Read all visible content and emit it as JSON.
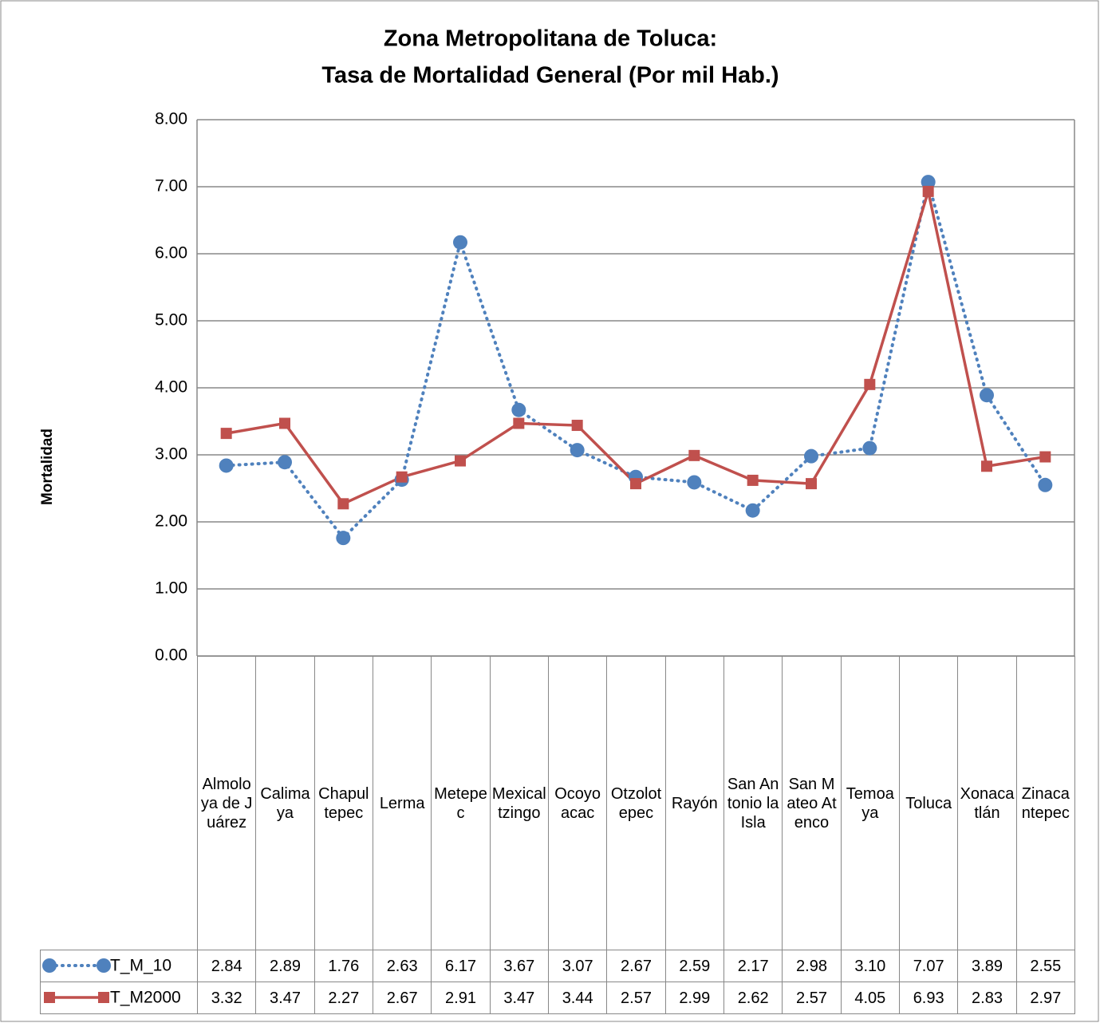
{
  "chart_data": {
    "type": "line",
    "title": "Zona Metropolitana de Toluca:",
    "subtitle": "Tasa de Mortalidad General (Por mil Hab.)",
    "y_label": "Mortalidad",
    "categories": [
      "Almoloya de Juárez",
      "Calimaya",
      "Chapultepec",
      "Lerma",
      "Metepec",
      "Mexicaltzingo",
      "Ocoyoacac",
      "Otzolotepec",
      "Rayón",
      "San Antonio la Isla",
      "San Mateo Atenco",
      "Temoaya",
      "Toluca",
      "Xonacatlán",
      "Zinacantepec"
    ],
    "series": [
      {
        "name": "T_M_10",
        "color": "#4f81bd",
        "marker": "circle",
        "dash": "dotted",
        "values": [
          2.84,
          2.89,
          1.76,
          2.63,
          6.17,
          3.67,
          3.07,
          2.67,
          2.59,
          2.17,
          2.98,
          3.1,
          7.07,
          3.89,
          2.55
        ],
        "value_labels": [
          "2.84",
          "2.89",
          "1.76",
          "2.63",
          "6.17",
          "3.67",
          "3.07",
          "2.67",
          "2.59",
          "2.17",
          "2.98",
          "3.10",
          "7.07",
          "3.89",
          "2.55"
        ]
      },
      {
        "name": "T_M2000",
        "color": "#c0504d",
        "marker": "square",
        "dash": "solid",
        "values": [
          3.32,
          3.47,
          2.27,
          2.67,
          2.91,
          3.47,
          3.44,
          2.57,
          2.99,
          2.62,
          2.57,
          4.05,
          6.93,
          2.83,
          2.97
        ],
        "value_labels": [
          "3.32",
          "3.47",
          "2.27",
          "2.67",
          "2.91",
          "3.47",
          "3.44",
          "2.57",
          "2.99",
          "2.62",
          "2.57",
          "4.05",
          "6.93",
          "2.83",
          "2.97"
        ]
      }
    ],
    "ylim": [
      0,
      8
    ],
    "yticks": [
      {
        "value": 0,
        "label": "0.00"
      },
      {
        "value": 1,
        "label": "1.00"
      },
      {
        "value": 2,
        "label": "2.00"
      },
      {
        "value": 3,
        "label": "3.00"
      },
      {
        "value": 4,
        "label": "4.00"
      },
      {
        "value": 5,
        "label": "5.00"
      },
      {
        "value": 6,
        "label": "6.00"
      },
      {
        "value": 7,
        "label": "7.00"
      },
      {
        "value": 8,
        "label": "8.00"
      }
    ],
    "grid": true
  }
}
